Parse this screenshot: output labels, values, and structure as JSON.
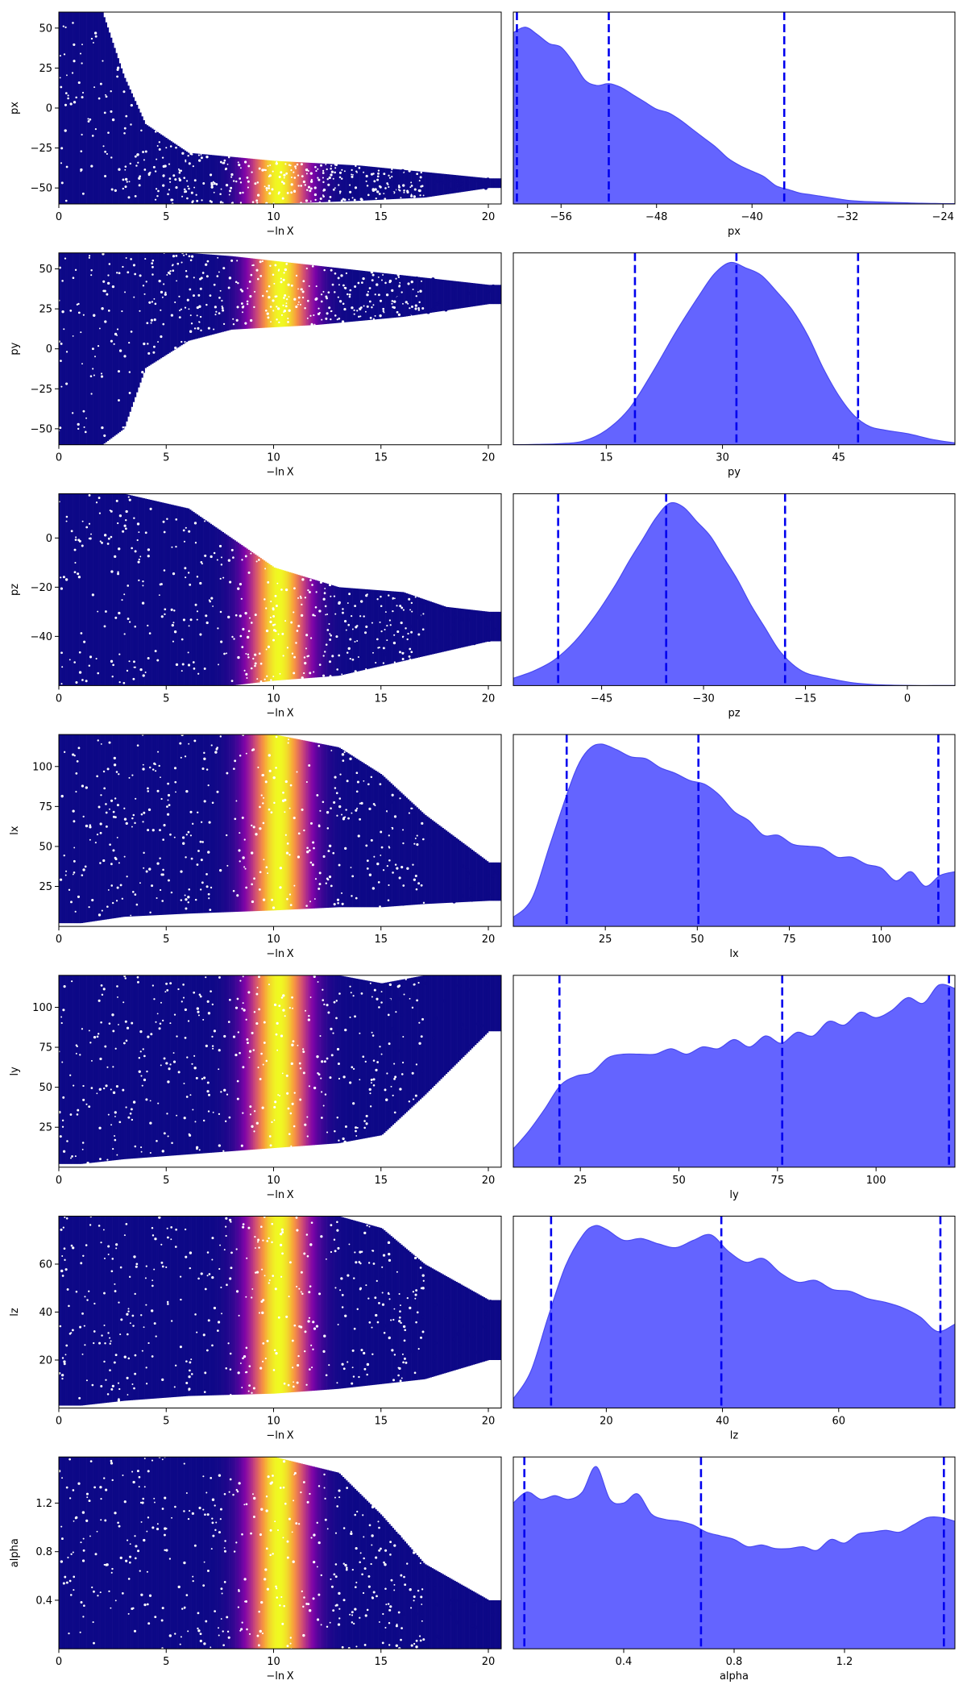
{
  "colors": {
    "trace_low": "#0d0887",
    "trace_mid": "#cc4778",
    "trace_high": "#f0f921",
    "kde_fill": "#6464ff",
    "kde_line": "#4a4af0",
    "quantile_line": "#0000ee",
    "axis": "#000000"
  },
  "chart_data": [
    {
      "type": "scatter",
      "panel": "trace",
      "param": "px",
      "ylabel": "px",
      "xlabel": "−ln X",
      "xlim": [
        0,
        20.6
      ],
      "ylim": [
        -60,
        60
      ],
      "xticks": [
        0,
        5,
        10,
        15,
        20
      ],
      "xtick_labels": [
        "0",
        "5",
        "10",
        "15",
        "20"
      ],
      "yticks": [
        -50,
        -25,
        0,
        25,
        50
      ],
      "ytick_labels": [
        "−50",
        "−25",
        "0",
        "25",
        "50"
      ],
      "colormap": "plasma",
      "weight_peak_lnx": 10.2,
      "envelope": [
        [
          0,
          -60,
          60
        ],
        [
          2,
          -60,
          60
        ],
        [
          3,
          -60,
          20
        ],
        [
          4,
          -60,
          -10
        ],
        [
          6,
          -60,
          -28
        ],
        [
          10,
          -60,
          -33
        ],
        [
          14,
          -58,
          -36
        ],
        [
          17,
          -56,
          -40
        ],
        [
          20,
          -50,
          -44
        ]
      ]
    },
    {
      "type": "area",
      "panel": "kde",
      "param": "px",
      "xlabel": "px",
      "xlim": [
        -60,
        -23
      ],
      "xticks": [
        -56,
        -48,
        -40,
        -32,
        -24
      ],
      "xtick_labels": [
        "−56",
        "−48",
        "−40",
        "−32",
        "−24"
      ],
      "quantiles": [
        -59.7,
        -52.0,
        -37.3
      ],
      "x": [
        -60,
        -59,
        -58,
        -57,
        -56,
        -55,
        -54,
        -53,
        -52,
        -51,
        -50,
        -49,
        -48,
        -47,
        -46,
        -45,
        -44,
        -43,
        -42,
        -41,
        -40,
        -39,
        -38,
        -37,
        -36,
        -35,
        -34,
        -33,
        -32,
        -31,
        -30,
        -29,
        -28,
        -27,
        -26,
        -25,
        -24,
        -23
      ],
      "y": [
        0.94,
        0.97,
        0.93,
        0.88,
        0.86,
        0.78,
        0.68,
        0.65,
        0.66,
        0.64,
        0.6,
        0.56,
        0.52,
        0.5,
        0.46,
        0.41,
        0.36,
        0.31,
        0.25,
        0.21,
        0.18,
        0.15,
        0.1,
        0.08,
        0.06,
        0.05,
        0.04,
        0.03,
        0.02,
        0.015,
        0.012,
        0.01,
        0.008,
        0.006,
        0.004,
        0.003,
        0.002,
        0.002
      ]
    },
    {
      "type": "scatter",
      "panel": "trace",
      "param": "py",
      "ylabel": "py",
      "xlabel": "−ln X",
      "xlim": [
        0,
        20.6
      ],
      "ylim": [
        -60,
        60
      ],
      "xticks": [
        0,
        5,
        10,
        15,
        20
      ],
      "xtick_labels": [
        "0",
        "5",
        "10",
        "15",
        "20"
      ],
      "yticks": [
        -50,
        -25,
        0,
        25,
        50
      ],
      "ytick_labels": [
        "−50",
        "−25",
        "0",
        "25",
        "50"
      ],
      "colormap": "plasma",
      "weight_peak_lnx": 10.3,
      "envelope": [
        [
          0,
          -60,
          60
        ],
        [
          2,
          -60,
          60
        ],
        [
          3,
          -50,
          60
        ],
        [
          4,
          -12,
          60
        ],
        [
          6,
          5,
          60
        ],
        [
          8,
          12,
          58
        ],
        [
          12,
          15,
          52
        ],
        [
          16,
          20,
          46
        ],
        [
          20,
          28,
          40
        ]
      ]
    },
    {
      "type": "area",
      "panel": "kde",
      "param": "py",
      "xlabel": "py",
      "xlim": [
        3,
        60
      ],
      "xticks": [
        15,
        30,
        45
      ],
      "xtick_labels": [
        "15",
        "30",
        "45"
      ],
      "quantiles": [
        18.7,
        31.8,
        47.5
      ],
      "x": [
        3,
        6,
        9,
        12,
        15,
        18,
        21,
        24,
        27,
        29,
        31,
        33,
        35,
        37,
        39,
        41,
        43,
        45,
        47,
        49,
        51,
        54,
        57,
        60
      ],
      "y": [
        0.0,
        0.002,
        0.006,
        0.02,
        0.08,
        0.2,
        0.4,
        0.62,
        0.82,
        0.94,
        1.0,
        0.97,
        0.93,
        0.84,
        0.74,
        0.6,
        0.42,
        0.27,
        0.16,
        0.1,
        0.08,
        0.06,
        0.03,
        0.01
      ]
    },
    {
      "type": "scatter",
      "panel": "trace",
      "param": "pz",
      "ylabel": "pz",
      "xlabel": "−ln X",
      "xlim": [
        0,
        20.6
      ],
      "ylim": [
        -60,
        18
      ],
      "xticks": [
        0,
        5,
        10,
        15,
        20
      ],
      "xtick_labels": [
        "0",
        "5",
        "10",
        "15",
        "20"
      ],
      "yticks": [
        -40,
        -20,
        0
      ],
      "ytick_labels": [
        "−40",
        "−20",
        "0"
      ],
      "colormap": "plasma",
      "weight_peak_lnx": 10.2,
      "envelope": [
        [
          0,
          -60,
          18
        ],
        [
          3,
          -60,
          18
        ],
        [
          6,
          -60,
          12
        ],
        [
          8,
          -60,
          0
        ],
        [
          10,
          -58,
          -12
        ],
        [
          13,
          -56,
          -20
        ],
        [
          16,
          -50,
          -22
        ],
        [
          18,
          -46,
          -28
        ],
        [
          20,
          -42,
          -30
        ]
      ]
    },
    {
      "type": "area",
      "panel": "kde",
      "param": "pz",
      "xlabel": "pz",
      "xlim": [
        -58,
        7
      ],
      "xticks": [
        -45,
        -30,
        -15,
        0
      ],
      "xtick_labels": [
        "−45",
        "−30",
        "−15",
        "0"
      ],
      "quantiles": [
        -51.4,
        -35.5,
        -18.0
      ],
      "x": [
        -58,
        -55,
        -52,
        -49,
        -46,
        -43,
        -41,
        -39,
        -37,
        -35,
        -33,
        -31,
        -29,
        -27,
        -25,
        -23,
        -21,
        -19,
        -17,
        -15,
        -13,
        -11,
        -8,
        -5,
        -2,
        1,
        4,
        7
      ],
      "y": [
        0.04,
        0.08,
        0.14,
        0.24,
        0.38,
        0.55,
        0.68,
        0.8,
        0.92,
        1.0,
        0.98,
        0.9,
        0.82,
        0.7,
        0.58,
        0.44,
        0.32,
        0.2,
        0.12,
        0.07,
        0.05,
        0.035,
        0.015,
        0.006,
        0.002,
        0.0,
        0.0,
        0.0
      ]
    },
    {
      "type": "scatter",
      "panel": "trace",
      "param": "lx",
      "ylabel": "lx",
      "xlabel": "−ln X",
      "xlim": [
        0,
        20.6
      ],
      "ylim": [
        0,
        120
      ],
      "xticks": [
        0,
        5,
        10,
        15,
        20
      ],
      "xtick_labels": [
        "0",
        "5",
        "10",
        "15",
        "20"
      ],
      "yticks": [
        25,
        50,
        75,
        100
      ],
      "ytick_labels": [
        "25",
        "50",
        "75",
        "100"
      ],
      "colormap": "plasma",
      "weight_peak_lnx": 10.2,
      "envelope": [
        [
          0,
          2,
          120
        ],
        [
          1,
          2,
          120
        ],
        [
          3,
          6,
          120
        ],
        [
          6,
          8,
          120
        ],
        [
          10,
          10,
          120
        ],
        [
          13,
          12,
          112
        ],
        [
          15,
          12,
          95
        ],
        [
          17,
          14,
          70
        ],
        [
          20,
          16,
          40
        ]
      ]
    },
    {
      "type": "area",
      "panel": "kde",
      "param": "lx",
      "xlabel": "lx",
      "xlim": [
        0,
        120
      ],
      "xticks": [
        25,
        50,
        75,
        100
      ],
      "xtick_labels": [
        "25",
        "50",
        "75",
        "100"
      ],
      "quantiles": [
        14.5,
        50.3,
        115.5
      ],
      "x": [
        0,
        5,
        10,
        15,
        18,
        21,
        24,
        28,
        32,
        36,
        40,
        44,
        48,
        52,
        56,
        60,
        64,
        68,
        72,
        76,
        80,
        84,
        88,
        92,
        96,
        100,
        104,
        108,
        112,
        116,
        120
      ],
      "y": [
        0.05,
        0.15,
        0.45,
        0.75,
        0.9,
        0.98,
        1.0,
        0.97,
        0.93,
        0.92,
        0.87,
        0.84,
        0.8,
        0.78,
        0.72,
        0.63,
        0.58,
        0.5,
        0.5,
        0.45,
        0.44,
        0.43,
        0.38,
        0.38,
        0.34,
        0.32,
        0.25,
        0.3,
        0.22,
        0.28,
        0.3
      ]
    },
    {
      "type": "scatter",
      "panel": "trace",
      "param": "ly",
      "ylabel": "ly",
      "xlabel": "−ln X",
      "xlim": [
        0,
        20.6
      ],
      "ylim": [
        0,
        120
      ],
      "xticks": [
        0,
        5,
        10,
        15,
        20
      ],
      "xtick_labels": [
        "0",
        "5",
        "10",
        "15",
        "20"
      ],
      "yticks": [
        25,
        50,
        75,
        100
      ],
      "ytick_labels": [
        "25",
        "50",
        "75",
        "100"
      ],
      "colormap": "plasma",
      "weight_peak_lnx": 10.2,
      "envelope": [
        [
          0,
          2,
          120
        ],
        [
          1,
          2,
          120
        ],
        [
          3,
          5,
          120
        ],
        [
          6,
          8,
          120
        ],
        [
          10,
          12,
          120
        ],
        [
          13,
          15,
          120
        ],
        [
          15,
          20,
          115
        ],
        [
          17,
          45,
          120
        ],
        [
          20,
          85,
          120
        ]
      ]
    },
    {
      "type": "area",
      "panel": "kde",
      "param": "ly",
      "xlabel": "ly",
      "xlim": [
        8,
        120
      ],
      "xticks": [
        25,
        50,
        75,
        100
      ],
      "xtick_labels": [
        "25",
        "50",
        "75",
        "100"
      ],
      "quantiles": [
        19.7,
        76.2,
        118.5
      ],
      "x": [
        8,
        12,
        16,
        20,
        24,
        28,
        32,
        36,
        40,
        44,
        48,
        52,
        56,
        60,
        64,
        68,
        72,
        76,
        80,
        84,
        88,
        92,
        96,
        100,
        104,
        108,
        112,
        116,
        120
      ],
      "y": [
        0.1,
        0.2,
        0.32,
        0.45,
        0.5,
        0.52,
        0.6,
        0.62,
        0.62,
        0.62,
        0.65,
        0.62,
        0.66,
        0.65,
        0.7,
        0.66,
        0.72,
        0.68,
        0.74,
        0.72,
        0.8,
        0.78,
        0.85,
        0.82,
        0.86,
        0.93,
        0.9,
        1.0,
        0.98
      ]
    },
    {
      "type": "scatter",
      "panel": "trace",
      "param": "lz",
      "ylabel": "lz",
      "xlabel": "−ln X",
      "xlim": [
        0,
        20.6
      ],
      "ylim": [
        0,
        80
      ],
      "xticks": [
        0,
        5,
        10,
        15,
        20
      ],
      "xtick_labels": [
        "0",
        "5",
        "10",
        "15",
        "20"
      ],
      "yticks": [
        20,
        40,
        60
      ],
      "ytick_labels": [
        "20",
        "40",
        "60"
      ],
      "colormap": "plasma",
      "weight_peak_lnx": 10.2,
      "envelope": [
        [
          0,
          1,
          80
        ],
        [
          1,
          1,
          80
        ],
        [
          3,
          3,
          80
        ],
        [
          6,
          5,
          80
        ],
        [
          10,
          6,
          80
        ],
        [
          13,
          8,
          80
        ],
        [
          15,
          10,
          75
        ],
        [
          17,
          12,
          60
        ],
        [
          20,
          20,
          45
        ]
      ]
    },
    {
      "type": "area",
      "panel": "kde",
      "param": "lz",
      "xlabel": "lz",
      "xlim": [
        4,
        80
      ],
      "xticks": [
        20,
        40,
        60
      ],
      "xtick_labels": [
        "20",
        "40",
        "60"
      ],
      "quantiles": [
        10.5,
        39.8,
        77.5
      ],
      "x": [
        4,
        7,
        10,
        13,
        16,
        18,
        20,
        23,
        26,
        29,
        32,
        35,
        38,
        41,
        44,
        47,
        50,
        53,
        56,
        59,
        62,
        65,
        68,
        71,
        74,
        77,
        80
      ],
      "y": [
        0.05,
        0.2,
        0.5,
        0.78,
        0.95,
        1.0,
        0.98,
        0.92,
        0.93,
        0.9,
        0.88,
        0.92,
        0.95,
        0.86,
        0.8,
        0.82,
        0.74,
        0.69,
        0.7,
        0.65,
        0.64,
        0.6,
        0.58,
        0.55,
        0.5,
        0.42,
        0.46
      ]
    },
    {
      "type": "scatter",
      "panel": "trace",
      "param": "alpha",
      "ylabel": "alpha",
      "xlabel": "−ln X",
      "xlim": [
        0,
        20.6
      ],
      "ylim": [
        0,
        1.58
      ],
      "xticks": [
        0,
        5,
        10,
        15,
        20
      ],
      "xtick_labels": [
        "0",
        "5",
        "10",
        "15",
        "20"
      ],
      "yticks": [
        0.4,
        0.8,
        1.2
      ],
      "ytick_labels": [
        "0.4",
        "0.8",
        "1.2"
      ],
      "colormap": "plasma",
      "weight_peak_lnx": 10.2,
      "envelope": [
        [
          0,
          0,
          1.58
        ],
        [
          3,
          0,
          1.58
        ],
        [
          7,
          0,
          1.58
        ],
        [
          10,
          0,
          1.58
        ],
        [
          13,
          0,
          1.45
        ],
        [
          15,
          0,
          1.1
        ],
        [
          17,
          0,
          0.7
        ],
        [
          20,
          0,
          0.4
        ]
      ]
    },
    {
      "type": "area",
      "panel": "kde",
      "param": "alpha",
      "xlabel": "alpha",
      "xlim": [
        0.0,
        1.6
      ],
      "xticks": [
        0.4,
        0.8,
        1.2
      ],
      "xtick_labels": [
        "0.4",
        "0.8",
        "1.2"
      ],
      "quantiles": [
        0.04,
        0.68,
        1.56
      ],
      "x": [
        0.0,
        0.05,
        0.1,
        0.15,
        0.2,
        0.25,
        0.3,
        0.35,
        0.4,
        0.45,
        0.5,
        0.55,
        0.6,
        0.65,
        0.7,
        0.75,
        0.8,
        0.85,
        0.9,
        0.95,
        1.0,
        1.05,
        1.1,
        1.15,
        1.2,
        1.25,
        1.3,
        1.35,
        1.4,
        1.45,
        1.5,
        1.55,
        1.6
      ],
      "y": [
        0.8,
        0.86,
        0.82,
        0.84,
        0.82,
        0.86,
        1.0,
        0.82,
        0.8,
        0.85,
        0.74,
        0.71,
        0.7,
        0.68,
        0.64,
        0.62,
        0.6,
        0.56,
        0.57,
        0.55,
        0.55,
        0.56,
        0.54,
        0.6,
        0.58,
        0.63,
        0.64,
        0.65,
        0.64,
        0.68,
        0.72,
        0.72,
        0.7
      ]
    }
  ]
}
